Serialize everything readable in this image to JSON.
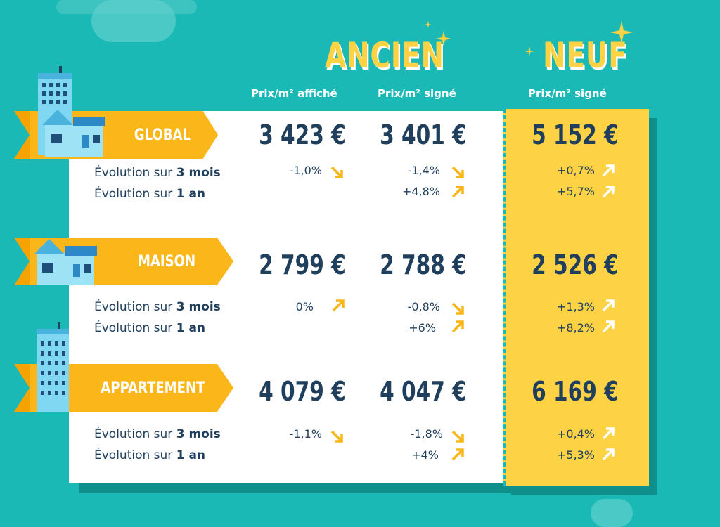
{
  "headers": {
    "ancien": "ANCIEN",
    "neuf": "NEUF",
    "col_affiche": "Prix/m² affiché",
    "col_signe": "Prix/m² signé",
    "col_neuf_signe": "Prix/m² signé"
  },
  "labels": {
    "evo3_prefix": "Évolution sur ",
    "evo3_bold": "3 mois",
    "evo1_prefix": "Évolution sur ",
    "evo1_bold": "1 an"
  },
  "rows": [
    {
      "name": "GLOBAL",
      "affiche": "3 423 €",
      "signe": "3 401 €",
      "neuf": "5 152 €",
      "affiche_3m": "-1,0%",
      "signe_3m": "-1,4%",
      "signe_1a": "+4,8%",
      "neuf_3m": "+0,7%",
      "neuf_1a": "+5,7%"
    },
    {
      "name": "MAISON",
      "affiche": "2 799 €",
      "signe": "2 788 €",
      "neuf": "2 526 €",
      "affiche_3m": "0%",
      "signe_3m": "-0,8%",
      "signe_1a": "+6%",
      "neuf_3m": "+1,3%",
      "neuf_1a": "+8,2%"
    },
    {
      "name": "APPARTEMENT",
      "affiche": "4 079 €",
      "signe": "4 047 €",
      "neuf": "6 169 €",
      "affiche_3m": "-1,1%",
      "signe_3m": "-1,8%",
      "signe_1a": "+4%",
      "neuf_3m": "+0,4%",
      "neuf_1a": "+5,3%"
    }
  ],
  "colors": {
    "background": "#1ab9b5",
    "ribbon": "#fbb71a",
    "neuf": "#fdd245",
    "text_dark": "#1f3f5d"
  }
}
